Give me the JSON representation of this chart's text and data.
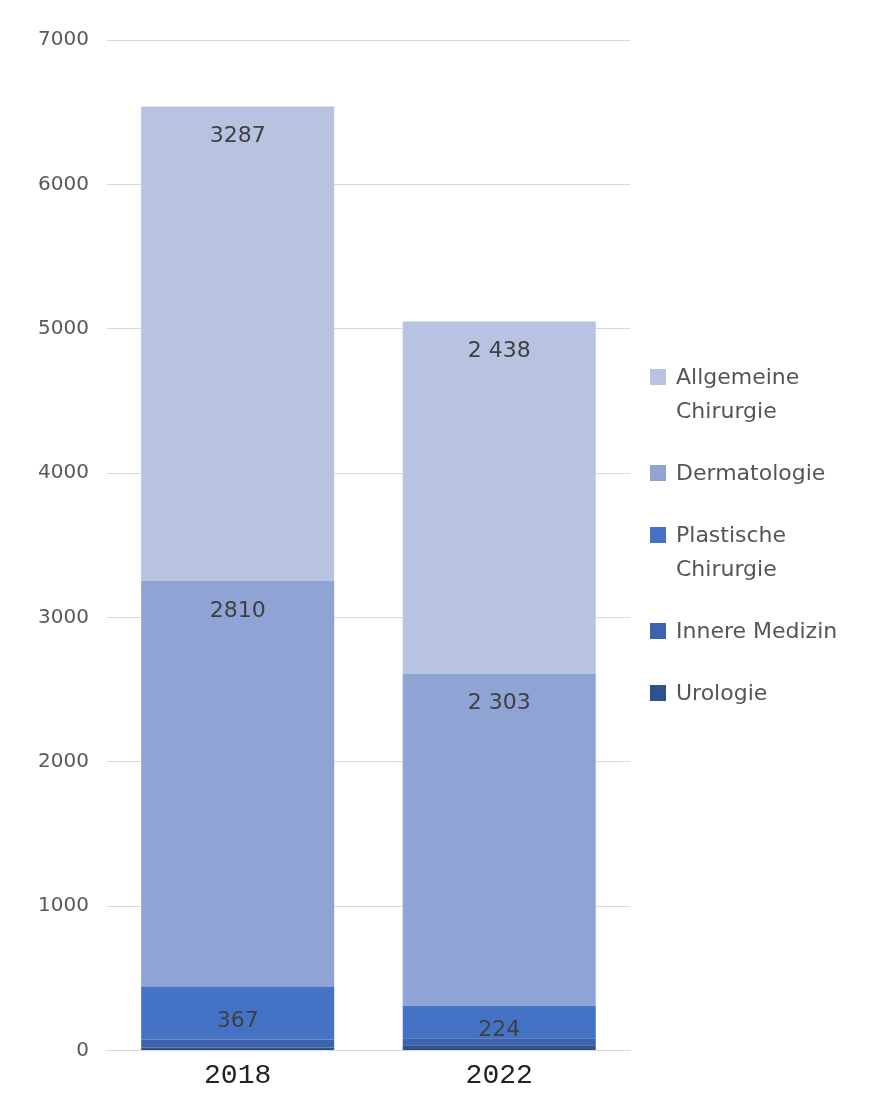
{
  "chart_data": {
    "type": "bar",
    "stacked": true,
    "categories": [
      "2018",
      "2022"
    ],
    "series": [
      {
        "name": "Urologie",
        "color": "#2f528f",
        "values": [
          20,
          35
        ],
        "value_labels": [
          null,
          null
        ]
      },
      {
        "name": "Innere Medizin",
        "color": "#3c63ac",
        "values": [
          55,
          50
        ],
        "value_labels": [
          null,
          null
        ]
      },
      {
        "name": "Plastische Chirurgie",
        "color": "#4472c4",
        "values": [
          367,
          224
        ],
        "value_labels": [
          "367",
          "224"
        ]
      },
      {
        "name": "Dermatologie",
        "color": "#8fa4d4",
        "values": [
          2810,
          2303
        ],
        "value_labels": [
          "2810",
          "2 303"
        ]
      },
      {
        "name": "Allgemeine Chirurgie",
        "color": "#b8c3e2",
        "values": [
          3287,
          2438
        ],
        "value_labels": [
          "3287",
          "2 438"
        ]
      }
    ],
    "ylim": [
      0,
      7000
    ],
    "yticks": [
      0,
      1000,
      2000,
      3000,
      4000,
      5000,
      6000,
      7000
    ],
    "grid": "y",
    "legend": "right"
  }
}
